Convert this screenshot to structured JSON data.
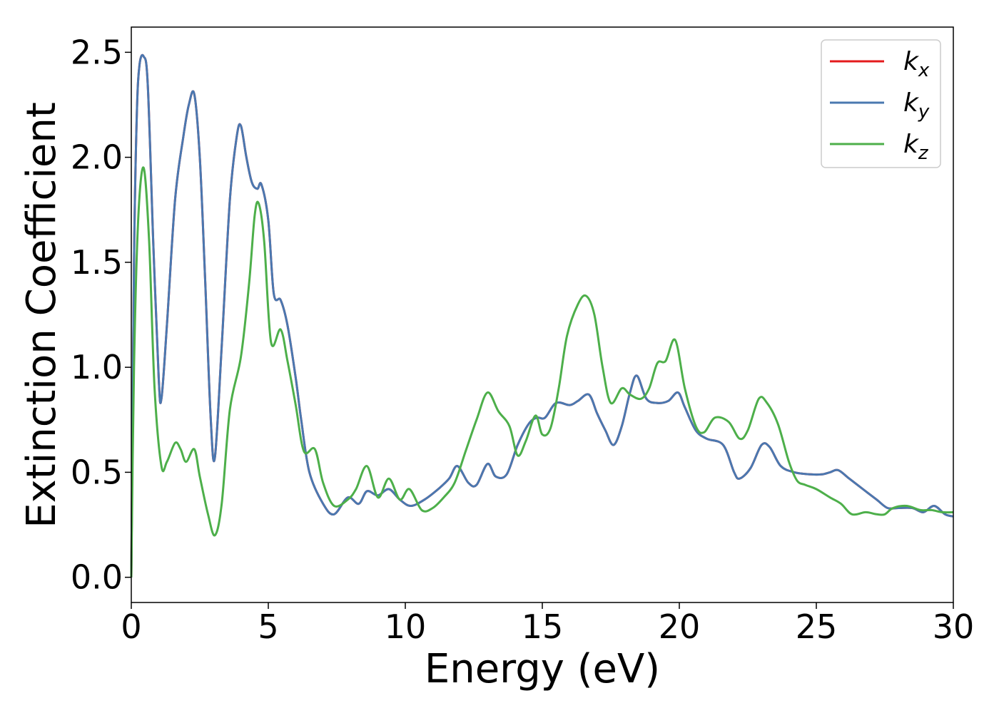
{
  "chart_data": {
    "type": "line",
    "xlabel": "Energy (eV)",
    "ylabel": "Extinction Coefficient",
    "xlim": [
      0,
      30
    ],
    "ylim": [
      -0.12,
      2.62
    ],
    "xticks": [
      "0",
      "5",
      "10",
      "15",
      "20",
      "25",
      "30"
    ],
    "yticks": [
      "0.0",
      "0.5",
      "1.0",
      "1.5",
      "2.0",
      "2.5"
    ],
    "grid": false,
    "legend_position": "top-right",
    "series": [
      {
        "name": "k_x",
        "legend_base": "k",
        "legend_sub": "x",
        "color": "#e41a1c",
        "points": [
          [
            0,
            0.0
          ],
          [
            0.1,
            1.5
          ],
          [
            0.2,
            2.2
          ],
          [
            0.3,
            2.44
          ],
          [
            0.45,
            2.48
          ],
          [
            0.6,
            2.35
          ],
          [
            0.8,
            1.6
          ],
          [
            1.0,
            0.95
          ],
          [
            1.1,
            0.85
          ],
          [
            1.3,
            1.2
          ],
          [
            1.6,
            1.8
          ],
          [
            1.9,
            2.1
          ],
          [
            2.1,
            2.25
          ],
          [
            2.3,
            2.3
          ],
          [
            2.5,
            2.0
          ],
          [
            2.7,
            1.4
          ],
          [
            2.9,
            0.75
          ],
          [
            3.05,
            0.57
          ],
          [
            3.3,
            1.1
          ],
          [
            3.6,
            1.8
          ],
          [
            3.85,
            2.1
          ],
          [
            4.0,
            2.15
          ],
          [
            4.2,
            2.0
          ],
          [
            4.4,
            1.88
          ],
          [
            4.6,
            1.85
          ],
          [
            4.75,
            1.87
          ],
          [
            5.0,
            1.7
          ],
          [
            5.2,
            1.35
          ],
          [
            5.45,
            1.32
          ],
          [
            5.7,
            1.2
          ],
          [
            6.0,
            0.95
          ],
          [
            6.2,
            0.75
          ],
          [
            6.5,
            0.5
          ],
          [
            7.0,
            0.35
          ],
          [
            7.4,
            0.3
          ],
          [
            7.9,
            0.38
          ],
          [
            8.3,
            0.35
          ],
          [
            8.6,
            0.41
          ],
          [
            9.0,
            0.39
          ],
          [
            9.4,
            0.42
          ],
          [
            9.8,
            0.37
          ],
          [
            10.2,
            0.34
          ],
          [
            10.7,
            0.37
          ],
          [
            11.2,
            0.42
          ],
          [
            11.6,
            0.47
          ],
          [
            11.9,
            0.53
          ],
          [
            12.3,
            0.45
          ],
          [
            12.6,
            0.44
          ],
          [
            13.0,
            0.54
          ],
          [
            13.3,
            0.48
          ],
          [
            13.7,
            0.49
          ],
          [
            14.1,
            0.63
          ],
          [
            14.5,
            0.73
          ],
          [
            14.8,
            0.76
          ],
          [
            15.1,
            0.76
          ],
          [
            15.5,
            0.83
          ],
          [
            16.0,
            0.82
          ],
          [
            16.3,
            0.84
          ],
          [
            16.7,
            0.87
          ],
          [
            17.0,
            0.78
          ],
          [
            17.3,
            0.7
          ],
          [
            17.6,
            0.63
          ],
          [
            17.9,
            0.72
          ],
          [
            18.2,
            0.88
          ],
          [
            18.45,
            0.96
          ],
          [
            18.8,
            0.85
          ],
          [
            19.2,
            0.83
          ],
          [
            19.6,
            0.84
          ],
          [
            19.95,
            0.88
          ],
          [
            20.2,
            0.81
          ],
          [
            20.6,
            0.7
          ],
          [
            21.0,
            0.66
          ],
          [
            21.6,
            0.63
          ],
          [
            22.0,
            0.5
          ],
          [
            22.2,
            0.47
          ],
          [
            22.6,
            0.52
          ],
          [
            23.0,
            0.63
          ],
          [
            23.3,
            0.62
          ],
          [
            23.7,
            0.53
          ],
          [
            24.2,
            0.5
          ],
          [
            24.8,
            0.49
          ],
          [
            25.2,
            0.49
          ],
          [
            25.5,
            0.5
          ],
          [
            25.8,
            0.51
          ],
          [
            26.2,
            0.47
          ],
          [
            26.7,
            0.42
          ],
          [
            27.2,
            0.37
          ],
          [
            27.6,
            0.33
          ],
          [
            28.0,
            0.33
          ],
          [
            28.5,
            0.33
          ],
          [
            28.9,
            0.31
          ],
          [
            29.3,
            0.34
          ],
          [
            29.7,
            0.3
          ],
          [
            30.0,
            0.29
          ]
        ]
      },
      {
        "name": "k_y",
        "legend_base": "k",
        "legend_sub": "y",
        "color": "#4a78b0",
        "points": [
          [
            0,
            0.0
          ],
          [
            0.1,
            1.5
          ],
          [
            0.2,
            2.2
          ],
          [
            0.3,
            2.44
          ],
          [
            0.45,
            2.48
          ],
          [
            0.6,
            2.35
          ],
          [
            0.8,
            1.6
          ],
          [
            1.0,
            0.95
          ],
          [
            1.1,
            0.85
          ],
          [
            1.3,
            1.2
          ],
          [
            1.6,
            1.8
          ],
          [
            1.9,
            2.1
          ],
          [
            2.1,
            2.25
          ],
          [
            2.3,
            2.3
          ],
          [
            2.5,
            2.0
          ],
          [
            2.7,
            1.4
          ],
          [
            2.9,
            0.75
          ],
          [
            3.05,
            0.57
          ],
          [
            3.3,
            1.1
          ],
          [
            3.6,
            1.8
          ],
          [
            3.85,
            2.1
          ],
          [
            4.0,
            2.15
          ],
          [
            4.2,
            2.0
          ],
          [
            4.4,
            1.88
          ],
          [
            4.6,
            1.85
          ],
          [
            4.75,
            1.87
          ],
          [
            5.0,
            1.7
          ],
          [
            5.2,
            1.35
          ],
          [
            5.45,
            1.32
          ],
          [
            5.7,
            1.2
          ],
          [
            6.0,
            0.95
          ],
          [
            6.2,
            0.75
          ],
          [
            6.5,
            0.5
          ],
          [
            7.0,
            0.35
          ],
          [
            7.4,
            0.3
          ],
          [
            7.9,
            0.38
          ],
          [
            8.3,
            0.35
          ],
          [
            8.6,
            0.41
          ],
          [
            9.0,
            0.39
          ],
          [
            9.4,
            0.42
          ],
          [
            9.8,
            0.37
          ],
          [
            10.2,
            0.34
          ],
          [
            10.7,
            0.37
          ],
          [
            11.2,
            0.42
          ],
          [
            11.6,
            0.47
          ],
          [
            11.9,
            0.53
          ],
          [
            12.3,
            0.45
          ],
          [
            12.6,
            0.44
          ],
          [
            13.0,
            0.54
          ],
          [
            13.3,
            0.48
          ],
          [
            13.7,
            0.49
          ],
          [
            14.1,
            0.63
          ],
          [
            14.5,
            0.73
          ],
          [
            14.8,
            0.76
          ],
          [
            15.1,
            0.76
          ],
          [
            15.5,
            0.83
          ],
          [
            16.0,
            0.82
          ],
          [
            16.3,
            0.84
          ],
          [
            16.7,
            0.87
          ],
          [
            17.0,
            0.78
          ],
          [
            17.3,
            0.7
          ],
          [
            17.6,
            0.63
          ],
          [
            17.9,
            0.72
          ],
          [
            18.2,
            0.88
          ],
          [
            18.45,
            0.96
          ],
          [
            18.8,
            0.85
          ],
          [
            19.2,
            0.83
          ],
          [
            19.6,
            0.84
          ],
          [
            19.95,
            0.88
          ],
          [
            20.2,
            0.81
          ],
          [
            20.6,
            0.7
          ],
          [
            21.0,
            0.66
          ],
          [
            21.6,
            0.63
          ],
          [
            22.0,
            0.5
          ],
          [
            22.2,
            0.47
          ],
          [
            22.6,
            0.52
          ],
          [
            23.0,
            0.63
          ],
          [
            23.3,
            0.62
          ],
          [
            23.7,
            0.53
          ],
          [
            24.2,
            0.5
          ],
          [
            24.8,
            0.49
          ],
          [
            25.2,
            0.49
          ],
          [
            25.5,
            0.5
          ],
          [
            25.8,
            0.51
          ],
          [
            26.2,
            0.47
          ],
          [
            26.7,
            0.42
          ],
          [
            27.2,
            0.37
          ],
          [
            27.6,
            0.33
          ],
          [
            28.0,
            0.33
          ],
          [
            28.5,
            0.33
          ],
          [
            28.9,
            0.31
          ],
          [
            29.3,
            0.34
          ],
          [
            29.7,
            0.3
          ],
          [
            30.0,
            0.29
          ]
        ]
      },
      {
        "name": "k_z",
        "legend_base": "k",
        "legend_sub": "z",
        "color": "#4daf4a",
        "points": [
          [
            0,
            0.0
          ],
          [
            0.1,
            1.0
          ],
          [
            0.25,
            1.7
          ],
          [
            0.45,
            1.95
          ],
          [
            0.65,
            1.6
          ],
          [
            0.85,
            0.9
          ],
          [
            1.1,
            0.53
          ],
          [
            1.3,
            0.55
          ],
          [
            1.6,
            0.64
          ],
          [
            1.8,
            0.61
          ],
          [
            2.0,
            0.55
          ],
          [
            2.3,
            0.61
          ],
          [
            2.5,
            0.48
          ],
          [
            2.8,
            0.3
          ],
          [
            3.05,
            0.2
          ],
          [
            3.3,
            0.35
          ],
          [
            3.6,
            0.8
          ],
          [
            4.0,
            1.05
          ],
          [
            4.3,
            1.4
          ],
          [
            4.5,
            1.72
          ],
          [
            4.65,
            1.78
          ],
          [
            4.85,
            1.6
          ],
          [
            5.1,
            1.12
          ],
          [
            5.45,
            1.18
          ],
          [
            5.7,
            1.03
          ],
          [
            6.0,
            0.82
          ],
          [
            6.3,
            0.6
          ],
          [
            6.7,
            0.61
          ],
          [
            7.0,
            0.45
          ],
          [
            7.4,
            0.34
          ],
          [
            7.9,
            0.37
          ],
          [
            8.2,
            0.42
          ],
          [
            8.6,
            0.53
          ],
          [
            9.0,
            0.38
          ],
          [
            9.4,
            0.47
          ],
          [
            9.8,
            0.37
          ],
          [
            10.15,
            0.42
          ],
          [
            10.6,
            0.32
          ],
          [
            11.0,
            0.33
          ],
          [
            11.4,
            0.38
          ],
          [
            11.8,
            0.45
          ],
          [
            12.2,
            0.6
          ],
          [
            12.6,
            0.75
          ],
          [
            13.0,
            0.88
          ],
          [
            13.4,
            0.79
          ],
          [
            13.8,
            0.72
          ],
          [
            14.1,
            0.58
          ],
          [
            14.4,
            0.65
          ],
          [
            14.75,
            0.77
          ],
          [
            15.0,
            0.68
          ],
          [
            15.3,
            0.71
          ],
          [
            15.6,
            0.9
          ],
          [
            15.9,
            1.15
          ],
          [
            16.3,
            1.3
          ],
          [
            16.6,
            1.34
          ],
          [
            16.9,
            1.25
          ],
          [
            17.2,
            1.0
          ],
          [
            17.5,
            0.83
          ],
          [
            17.9,
            0.9
          ],
          [
            18.2,
            0.87
          ],
          [
            18.6,
            0.85
          ],
          [
            18.9,
            0.9
          ],
          [
            19.2,
            1.02
          ],
          [
            19.5,
            1.03
          ],
          [
            19.85,
            1.13
          ],
          [
            20.2,
            0.9
          ],
          [
            20.6,
            0.72
          ],
          [
            20.9,
            0.69
          ],
          [
            21.3,
            0.76
          ],
          [
            21.8,
            0.74
          ],
          [
            22.2,
            0.66
          ],
          [
            22.5,
            0.7
          ],
          [
            22.9,
            0.85
          ],
          [
            23.2,
            0.83
          ],
          [
            23.6,
            0.73
          ],
          [
            24.0,
            0.55
          ],
          [
            24.3,
            0.46
          ],
          [
            24.6,
            0.44
          ],
          [
            25.0,
            0.42
          ],
          [
            25.5,
            0.38
          ],
          [
            25.9,
            0.35
          ],
          [
            26.3,
            0.3
          ],
          [
            26.8,
            0.31
          ],
          [
            27.2,
            0.3
          ],
          [
            27.5,
            0.3
          ],
          [
            27.8,
            0.33
          ],
          [
            28.3,
            0.34
          ],
          [
            28.8,
            0.32
          ],
          [
            29.2,
            0.32
          ],
          [
            29.6,
            0.31
          ],
          [
            30.0,
            0.31
          ]
        ]
      }
    ]
  }
}
